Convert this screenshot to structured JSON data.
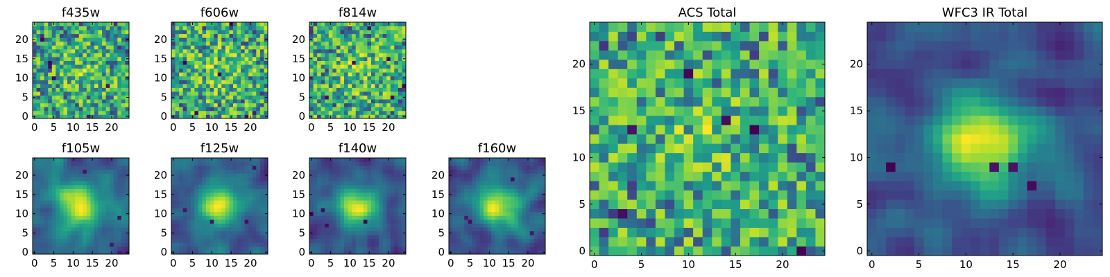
{
  "chart_data": [
    {
      "type": "heatmap",
      "title": "f435w",
      "colormap": "viridis",
      "texture": "noisy",
      "seed": 11,
      "xticks": [
        0,
        5,
        10,
        15,
        20
      ],
      "yticks": [
        0,
        5,
        10,
        15,
        20
      ],
      "xlim": [
        -0.5,
        24.5
      ],
      "ylim": [
        -0.5,
        24.5
      ],
      "grid_size": 25
    },
    {
      "type": "heatmap",
      "title": "f606w",
      "colormap": "viridis",
      "texture": "noisy",
      "seed": 23,
      "xticks": [
        0,
        5,
        10,
        15,
        20
      ],
      "yticks": [
        0,
        5,
        10,
        15,
        20
      ],
      "xlim": [
        -0.5,
        24.5
      ],
      "ylim": [
        -0.5,
        24.5
      ],
      "grid_size": 25
    },
    {
      "type": "heatmap",
      "title": "f814w",
      "colormap": "viridis",
      "texture": "noisy",
      "seed": 37,
      "xticks": [
        0,
        5,
        10,
        15,
        20
      ],
      "yticks": [
        0,
        5,
        10,
        15,
        20
      ],
      "xlim": [
        -0.5,
        24.5
      ],
      "ylim": [
        -0.5,
        24.5
      ],
      "grid_size": 25
    },
    {
      "type": "heatmap",
      "title": "f105w",
      "colormap": "viridis",
      "texture": "smooth",
      "seed": 41,
      "xticks": [
        0,
        5,
        10,
        15,
        20
      ],
      "yticks": [
        0,
        5,
        10,
        15,
        20
      ],
      "xlim": [
        -0.5,
        24.5
      ],
      "ylim": [
        -0.5,
        24.5
      ],
      "grid_size": 25
    },
    {
      "type": "heatmap",
      "title": "f125w",
      "colormap": "viridis",
      "texture": "smooth",
      "seed": 53,
      "xticks": [
        0,
        5,
        10,
        15,
        20
      ],
      "yticks": [
        0,
        5,
        10,
        15,
        20
      ],
      "xlim": [
        -0.5,
        24.5
      ],
      "ylim": [
        -0.5,
        24.5
      ],
      "grid_size": 25
    },
    {
      "type": "heatmap",
      "title": "f140w",
      "colormap": "viridis",
      "texture": "smooth",
      "seed": 67,
      "xticks": [
        0,
        5,
        10,
        15,
        20
      ],
      "yticks": [
        0,
        5,
        10,
        15,
        20
      ],
      "xlim": [
        -0.5,
        24.5
      ],
      "ylim": [
        -0.5,
        24.5
      ],
      "grid_size": 25
    },
    {
      "type": "heatmap",
      "title": "f160w",
      "colormap": "viridis",
      "texture": "smooth",
      "seed": 79,
      "xticks": [
        0,
        5,
        10,
        15,
        20
      ],
      "yticks": [
        0,
        5,
        10,
        15,
        20
      ],
      "xlim": [
        -0.5,
        24.5
      ],
      "ylim": [
        -0.5,
        24.5
      ],
      "grid_size": 25
    },
    {
      "type": "heatmap",
      "title": "ACS Total",
      "colormap": "viridis",
      "texture": "noisy",
      "seed": 83,
      "xticks": [
        0,
        5,
        10,
        15,
        20
      ],
      "yticks": [
        0,
        5,
        10,
        15,
        20
      ],
      "xlim": [
        -0.5,
        24.5
      ],
      "ylim": [
        -0.5,
        24.5
      ],
      "grid_size": 25
    },
    {
      "type": "heatmap",
      "title": "WFC3 IR Total",
      "colormap": "viridis",
      "texture": "smooth",
      "seed": 97,
      "xticks": [
        0,
        5,
        10,
        15,
        20
      ],
      "yticks": [
        0,
        5,
        10,
        15,
        20
      ],
      "xlim": [
        -0.5,
        24.5
      ],
      "ylim": [
        -0.5,
        24.5
      ],
      "grid_size": 25
    }
  ]
}
